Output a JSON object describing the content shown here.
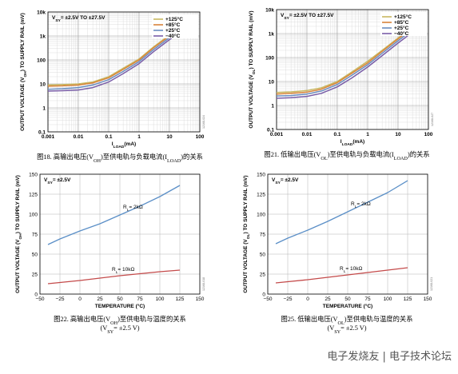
{
  "chart_data": [
    {
      "type": "line",
      "xlabel": "I LOAD (mA)",
      "ylabel": "OUTPUT VOLTAGE (V OH ) TO SUPPLY RAIL (mV)",
      "xscale": "log",
      "yscale": "log",
      "xlim": [
        0.001,
        100
      ],
      "ylim": [
        0.1,
        10000
      ],
      "xticks": [
        "0.001",
        "0.01",
        "0.1",
        "1",
        "10",
        "100"
      ],
      "yticks": [
        "0.1",
        "1",
        "10",
        "100",
        "1k",
        "10k"
      ],
      "annotation": "V SY = ±2.5V TO ±27.5V",
      "legend_position": "top-right",
      "series": [
        {
          "name": "+125°C",
          "color": "#c8b860",
          "points": [
            [
              0.001,
              9
            ],
            [
              0.003,
              9.3
            ],
            [
              0.01,
              10
            ],
            [
              0.03,
              12
            ],
            [
              0.1,
              20
            ],
            [
              0.3,
              45
            ],
            [
              1,
              110
            ],
            [
              3,
              350
            ],
            [
              10,
              1100
            ],
            [
              30,
              3000
            ]
          ]
        },
        {
          "name": "+85°C",
          "color": "#d8843a",
          "points": [
            [
              0.001,
              8
            ],
            [
              0.003,
              8.3
            ],
            [
              0.01,
              9
            ],
            [
              0.03,
              11
            ],
            [
              0.1,
              18
            ],
            [
              0.3,
              40
            ],
            [
              1,
              100
            ],
            [
              3,
              320
            ],
            [
              10,
              1000
            ],
            [
              32,
              2900
            ]
          ]
        },
        {
          "name": "+25°C",
          "color": "#6a8dc0",
          "points": [
            [
              0.001,
              6
            ],
            [
              0.003,
              6.3
            ],
            [
              0.01,
              7
            ],
            [
              0.03,
              9
            ],
            [
              0.1,
              15
            ],
            [
              0.3,
              33
            ],
            [
              1,
              85
            ],
            [
              3,
              270
            ],
            [
              10,
              850
            ],
            [
              35,
              2700
            ]
          ]
        },
        {
          "name": "−40°C",
          "color": "#7a5ea8",
          "points": [
            [
              0.001,
              5
            ],
            [
              0.003,
              5.2
            ],
            [
              0.01,
              5.6
            ],
            [
              0.03,
              7
            ],
            [
              0.1,
              12
            ],
            [
              0.3,
              27
            ],
            [
              1,
              70
            ],
            [
              3,
              220
            ],
            [
              10,
              700
            ],
            [
              40,
              2500
            ]
          ]
        }
      ]
    },
    {
      "type": "line",
      "xlabel": "I LOAD (mA)",
      "ylabel": "OUTPUT VOLTAGE (V OL ) TO SUPPLY RAIL (mV)",
      "xscale": "log",
      "yscale": "log",
      "xlim": [
        0.001,
        100
      ],
      "ylim": [
        0.1,
        10000
      ],
      "xticks": [
        "0.001",
        "0.01",
        "0.1",
        "1",
        "10",
        "100"
      ],
      "yticks": [
        "0.1",
        "1",
        "10",
        "100",
        "1k",
        "10k"
      ],
      "annotation": "V SY = ±2.5V TO ±27.5V",
      "legend_position": "top-right",
      "series": [
        {
          "name": "+125°C",
          "color": "#c8b860",
          "points": [
            [
              0.001,
              3.5
            ],
            [
              0.003,
              3.7
            ],
            [
              0.01,
              4.2
            ],
            [
              0.03,
              5.5
            ],
            [
              0.1,
              10
            ],
            [
              0.3,
              25
            ],
            [
              1,
              70
            ],
            [
              3,
              200
            ],
            [
              10,
              650
            ],
            [
              20,
              1300
            ]
          ]
        },
        {
          "name": "+85°C",
          "color": "#d8843a",
          "points": [
            [
              0.001,
              3
            ],
            [
              0.003,
              3.2
            ],
            [
              0.01,
              3.6
            ],
            [
              0.03,
              4.8
            ],
            [
              0.1,
              9
            ],
            [
              0.3,
              22
            ],
            [
              1,
              60
            ],
            [
              3,
              180
            ],
            [
              10,
              600
            ],
            [
              22,
              1250
            ]
          ]
        },
        {
          "name": "+25°C",
          "color": "#6a8dc0",
          "points": [
            [
              0.001,
              2.5
            ],
            [
              0.003,
              2.6
            ],
            [
              0.01,
              3
            ],
            [
              0.03,
              4
            ],
            [
              0.1,
              7.5
            ],
            [
              0.3,
              18
            ],
            [
              1,
              50
            ],
            [
              3,
              150
            ],
            [
              10,
              500
            ],
            [
              25,
              1200
            ]
          ]
        },
        {
          "name": "−40°C",
          "color": "#7a5ea8",
          "points": [
            [
              0.001,
              2
            ],
            [
              0.003,
              2.1
            ],
            [
              0.01,
              2.4
            ],
            [
              0.03,
              3.2
            ],
            [
              0.1,
              6
            ],
            [
              0.3,
              14
            ],
            [
              1,
              40
            ],
            [
              3,
              120
            ],
            [
              10,
              400
            ],
            [
              30,
              1150
            ]
          ]
        }
      ]
    },
    {
      "type": "line",
      "xlabel": "TEMPERATURE (°C)",
      "ylabel": "OUTPUT VOLTAGE (V OH ) TO SUPPLY RAIL (mV)",
      "xlim": [
        -50,
        150
      ],
      "ylim": [
        0,
        150
      ],
      "xticks": [
        "−50",
        "−25",
        "0",
        "25",
        "50",
        "75",
        "100",
        "125",
        "150"
      ],
      "yticks": [
        "0",
        "25",
        "50",
        "75",
        "100",
        "125",
        "150"
      ],
      "annotation": "V SY = ±2.5V",
      "series": [
        {
          "name": "R L = 2kΩ",
          "color": "#5b8fc7",
          "points": [
            [
              -40,
              62
            ],
            [
              -25,
              69
            ],
            [
              0,
              79
            ],
            [
              25,
              88
            ],
            [
              50,
              99
            ],
            [
              75,
              110
            ],
            [
              100,
              122
            ],
            [
              125,
              136
            ]
          ]
        },
        {
          "name": "R L = 10kΩ",
          "color": "#c44a4a",
          "points": [
            [
              -40,
              13
            ],
            [
              -25,
              14.5
            ],
            [
              0,
              17
            ],
            [
              25,
              20
            ],
            [
              50,
              23
            ],
            [
              75,
              25.5
            ],
            [
              100,
              28
            ],
            [
              125,
              30
            ]
          ]
        }
      ]
    },
    {
      "type": "line",
      "xlabel": "TEMPERATURE (°C)",
      "ylabel": "OUTPUT VOLTAGE (V OL ) TO SUPPLY RAIL (mV)",
      "xlim": [
        -50,
        150
      ],
      "ylim": [
        0,
        150
      ],
      "xticks": [
        "−50",
        "−25",
        "0",
        "25",
        "50",
        "75",
        "100",
        "125",
        "150"
      ],
      "yticks": [
        "0",
        "25",
        "50",
        "75",
        "100",
        "125",
        "150"
      ],
      "annotation": "V SY = ±2.5V",
      "series": [
        {
          "name": "R L = 2kΩ",
          "color": "#5b8fc7",
          "points": [
            [
              -40,
              63
            ],
            [
              -25,
              70
            ],
            [
              0,
              80
            ],
            [
              25,
              91
            ],
            [
              50,
              103
            ],
            [
              75,
              115
            ],
            [
              100,
              127
            ],
            [
              125,
              142
            ]
          ]
        },
        {
          "name": "R L = 10kΩ",
          "color": "#c44a4a",
          "points": [
            [
              -40,
              14
            ],
            [
              -25,
              15.5
            ],
            [
              0,
              18
            ],
            [
              25,
              21
            ],
            [
              50,
              24
            ],
            [
              75,
              27
            ],
            [
              100,
              30
            ],
            [
              125,
              33
            ]
          ]
        }
      ]
    }
  ],
  "captions": [
    "图18. 高输出电压(V OH )至供电轨与负载电流(I LOAD )的关系",
    "图21. 低输出电压(V OL )至供电轨与负载电流(I LOAD )的关系",
    "图22. 高输出电压(V OH )至供电轨与温度的关系",
    "(V SY = ±2.5 V)",
    "图25. 低输出电压(V OL )至供电轨与温度的关系",
    "(V SY = ±2.5 V)"
  ],
  "figure_ids": [
    "12168-024",
    "12168-027",
    "12168-018",
    "12168-021"
  ],
  "watermark": "电子发烧友 | 电子技术论坛"
}
